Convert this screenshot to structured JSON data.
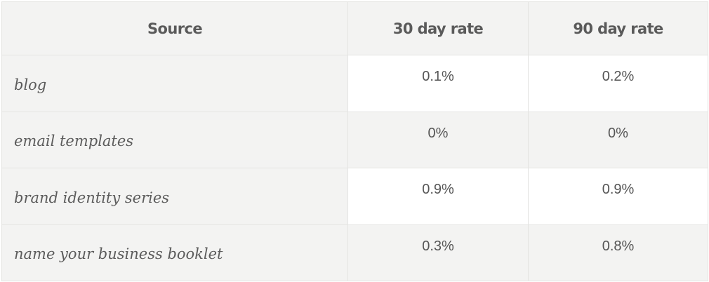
{
  "table": {
    "headers": [
      "Source",
      "30 day rate",
      "90 day rate"
    ],
    "rows": [
      {
        "source": "blog",
        "rate_30": "0.1%",
        "rate_90": "0.2%"
      },
      {
        "source": "email templates",
        "rate_30": "0%",
        "rate_90": "0%"
      },
      {
        "source": "brand identity series",
        "rate_30": "0.9%",
        "rate_90": "0.9%"
      },
      {
        "source": "name your business booklet",
        "rate_30": "0.3%",
        "rate_90": "0.8%"
      }
    ]
  },
  "colors": {
    "header_bg": "#f3f3f2",
    "border": "#e4e4e2",
    "text": "#5a5a5a",
    "alt_row_bg": "#f3f3f2",
    "row_bg": "#ffffff"
  }
}
